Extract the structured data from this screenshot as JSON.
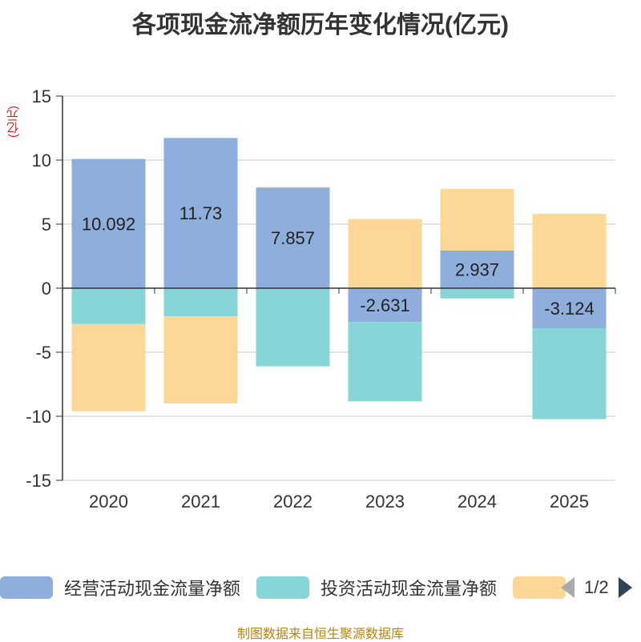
{
  "chart_data": {
    "type": "bar",
    "stacked": true,
    "title": "各项现金流净额历年变化情况(亿元)",
    "ylabel": "(亿元)",
    "categories": [
      "2020",
      "2021",
      "2022",
      "2023",
      "2024",
      "2025"
    ],
    "ylim": [
      -15,
      15
    ],
    "yticks": [
      15,
      10,
      5,
      0,
      -5,
      -10,
      -15
    ],
    "series": [
      {
        "name": "经营活动现金流量净额",
        "color": "#8eaedb",
        "values": [
          10.092,
          11.73,
          7.857,
          -2.631,
          2.937,
          -3.124
        ],
        "labels": [
          "10.092",
          "11.73",
          "7.857",
          "-2.631",
          "2.937",
          "-3.124"
        ]
      },
      {
        "name": "投资活动现金流量净额",
        "color": "#86d5d7",
        "values": [
          -2.8,
          -2.2,
          -6.1,
          -6.2,
          -0.8,
          -7.1
        ]
      },
      {
        "name": "",
        "color": "#fdd796",
        "values": [
          -6.8,
          -6.8,
          0.05,
          5.4,
          4.8,
          5.8
        ]
      }
    ]
  },
  "legend": {
    "items": [
      {
        "label": "经营活动现金流量净额",
        "color": "#8eaedb"
      },
      {
        "label": "投资活动现金流量净额",
        "color": "#86d5d7"
      },
      {
        "label": "",
        "color": "#fdd796"
      }
    ],
    "page": "1/2"
  },
  "source": "制图数据来自恒生聚源数据库"
}
